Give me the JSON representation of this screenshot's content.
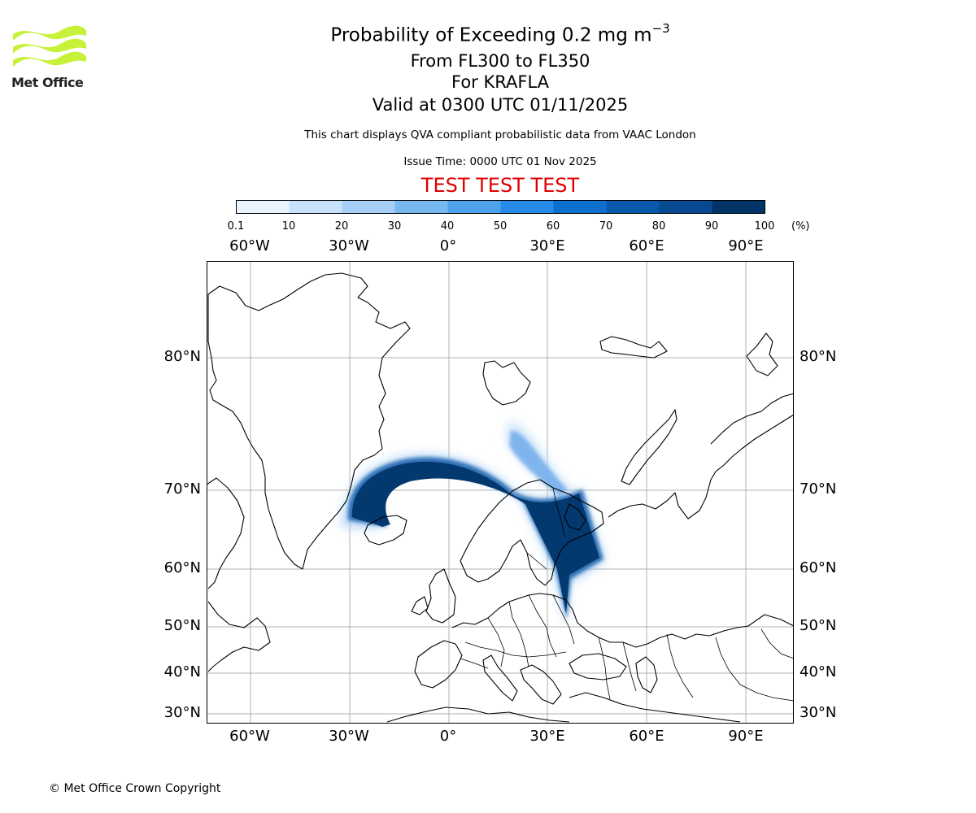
{
  "header": {
    "title_main": "Probability of Exceeding 0.2 mg m",
    "title_sup": "−3",
    "levels": "From FL300 to FL350",
    "volcano": "For KRAFLA",
    "valid": "Valid at 0300 UTC 01/11/2025",
    "description": "This chart displays QVA compliant probabilistic data from VAAC London",
    "issue_time": "Issue Time: 0000 UTC 01 Nov 2025",
    "test_banner": "TEST TEST TEST"
  },
  "logo": {
    "name": "Met Office",
    "color": "#c6f23a"
  },
  "colorbar": {
    "ticks": [
      "0.1",
      "10",
      "20",
      "30",
      "40",
      "50",
      "60",
      "70",
      "80",
      "90",
      "100"
    ],
    "unit": "(%)",
    "colors": [
      "#eaf4ff",
      "#c8e2fb",
      "#a5cff6",
      "#78b8f0",
      "#4ea2ec",
      "#268ae6",
      "#0d6fce",
      "#0a58ad",
      "#074a92",
      "#033467"
    ]
  },
  "axes": {
    "lon_labels": [
      "60°W",
      "30°W",
      "0°",
      "30°E",
      "60°E",
      "90°E"
    ],
    "lat_labels": [
      "80°N",
      "70°N",
      "60°N",
      "50°N",
      "40°N",
      "30°N"
    ]
  },
  "plume": {
    "core_color": "#03396e",
    "mid_color": "#2d6fb5",
    "edge_color": "#a9d0f5"
  },
  "footer": {
    "copyright": "© Met Office Crown Copyright"
  }
}
